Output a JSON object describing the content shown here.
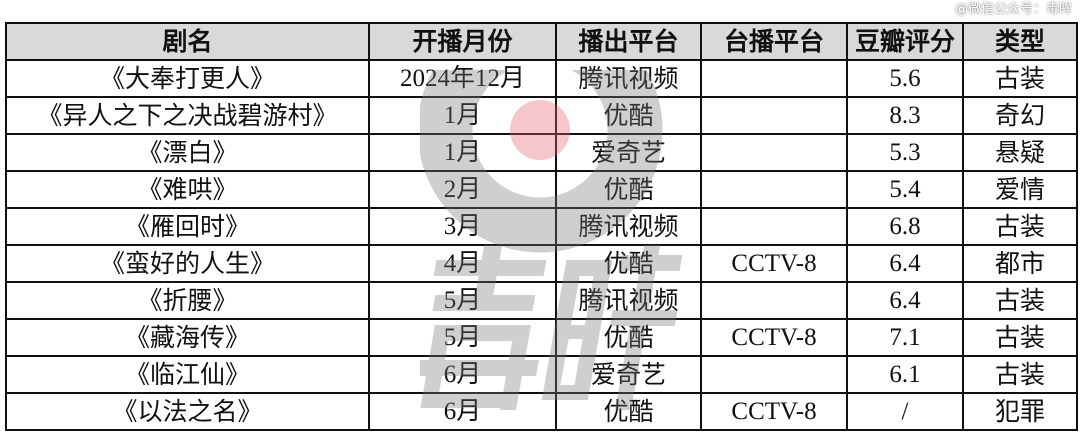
{
  "watermark": "@微信公众号：毒眸",
  "logo_text": "毒眸",
  "headers": [
    "剧名",
    "开播月份",
    "播出平台",
    "台播平台",
    "豆瓣评分",
    "类型"
  ],
  "rows": [
    [
      "《大奉打更人》",
      "2024年12月",
      "腾讯视频",
      "",
      "5.6",
      "古装"
    ],
    [
      "《异人之下之决战碧游村》",
      "1月",
      "优酷",
      "",
      "8.3",
      "奇幻"
    ],
    [
      "《漂白》",
      "1月",
      "爱奇艺",
      "",
      "5.3",
      "悬疑"
    ],
    [
      "《难哄》",
      "2月",
      "优酷",
      "",
      "5.4",
      "爱情"
    ],
    [
      "《雁回时》",
      "3月",
      "腾讯视频",
      "",
      "6.8",
      "古装"
    ],
    [
      "《蛮好的人生》",
      "4月",
      "优酷",
      "CCTV-8",
      "6.4",
      "都市"
    ],
    [
      "《折腰》",
      "5月",
      "腾讯视频",
      "",
      "6.4",
      "古装"
    ],
    [
      "《藏海传》",
      "5月",
      "优酷",
      "CCTV-8",
      "7.1",
      "古装"
    ],
    [
      "《临江仙》",
      "6月",
      "爱奇艺",
      "",
      "6.1",
      "古装"
    ],
    [
      "《以法之名》",
      "6月",
      "优酷",
      "CCTV-8",
      "/",
      "犯罪"
    ]
  ],
  "colors": {
    "header_bg": "#d9d9d9",
    "border": "#111111",
    "logo_accent": "#e8606a"
  }
}
